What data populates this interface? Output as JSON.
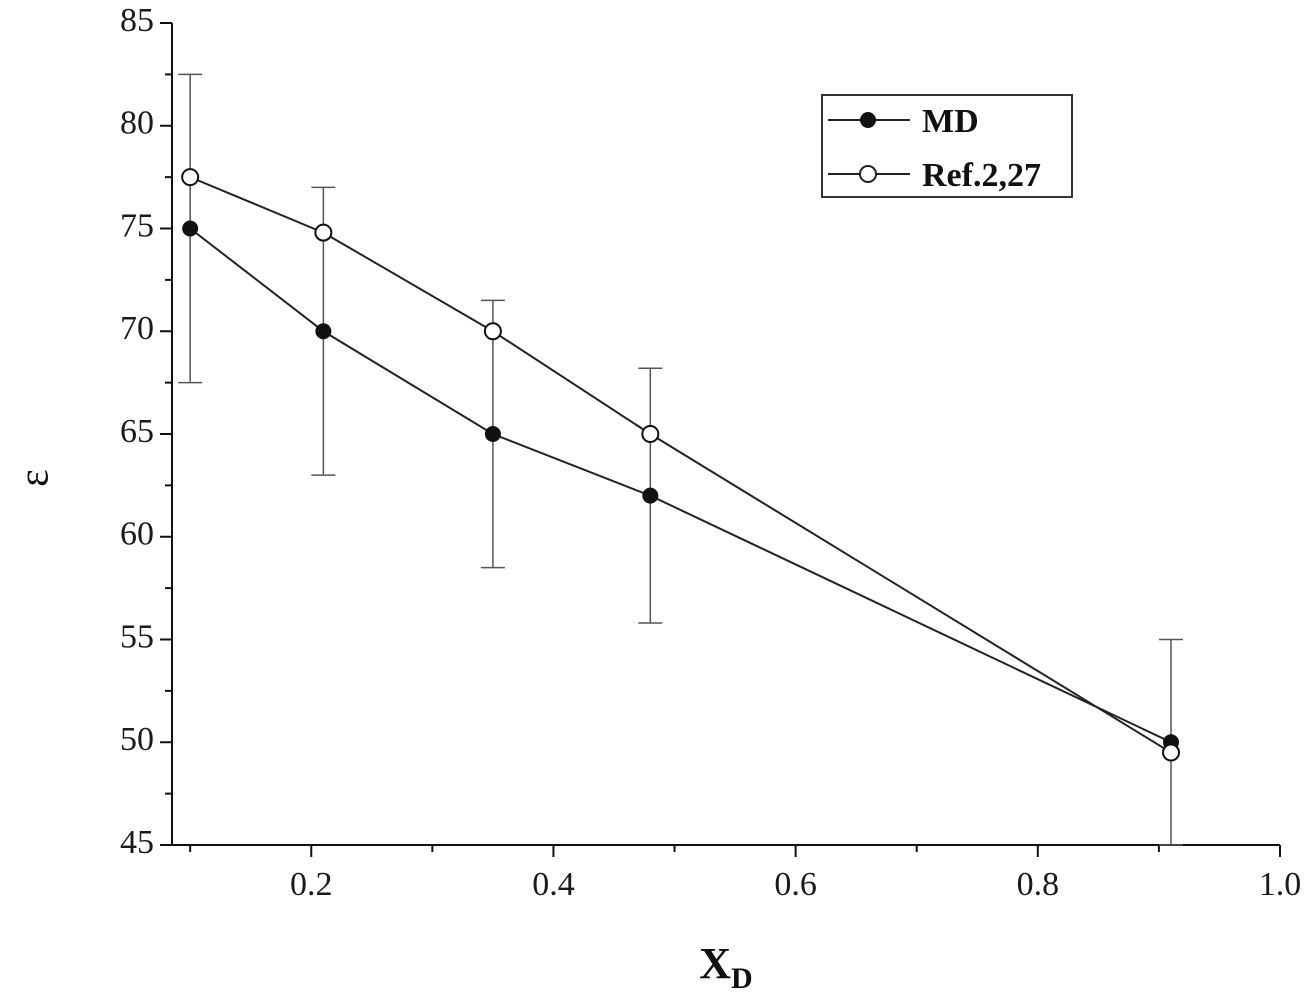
{
  "chart_data": {
    "type": "line",
    "title": "",
    "xlabel": "X",
    "xlabel_subscript": "D",
    "ylabel": "ε",
    "xlim": [
      0.085,
      1.0
    ],
    "ylim": [
      45,
      85
    ],
    "x_ticks": [
      0.2,
      0.4,
      0.6,
      0.8,
      1.0
    ],
    "x_tick_labels": [
      "0.2",
      "0.4",
      "0.6",
      "0.8",
      "1.0"
    ],
    "x_minor_ticks": [
      0.1,
      0.3,
      0.5,
      0.7,
      0.9
    ],
    "y_ticks": [
      45,
      50,
      55,
      60,
      65,
      70,
      75,
      80,
      85
    ],
    "y_tick_labels": [
      "45",
      "50",
      "55",
      "60",
      "65",
      "70",
      "75",
      "80",
      "85"
    ],
    "grid": false,
    "legend_position": "top-right",
    "series": [
      {
        "name": "MD",
        "marker": "filled-circle",
        "color": "#111111",
        "x": [
          0.1,
          0.21,
          0.35,
          0.48,
          0.91
        ],
        "y": [
          75,
          70,
          65,
          62,
          50
        ],
        "error": [
          7.5,
          7,
          6.5,
          6.2,
          5
        ]
      },
      {
        "name": "Ref.2,27",
        "marker": "open-circle",
        "color": "#111111",
        "x": [
          0.1,
          0.21,
          0.35,
          0.48,
          0.91
        ],
        "y": [
          77.5,
          74.8,
          70,
          65,
          49.5
        ],
        "error": null
      }
    ]
  }
}
